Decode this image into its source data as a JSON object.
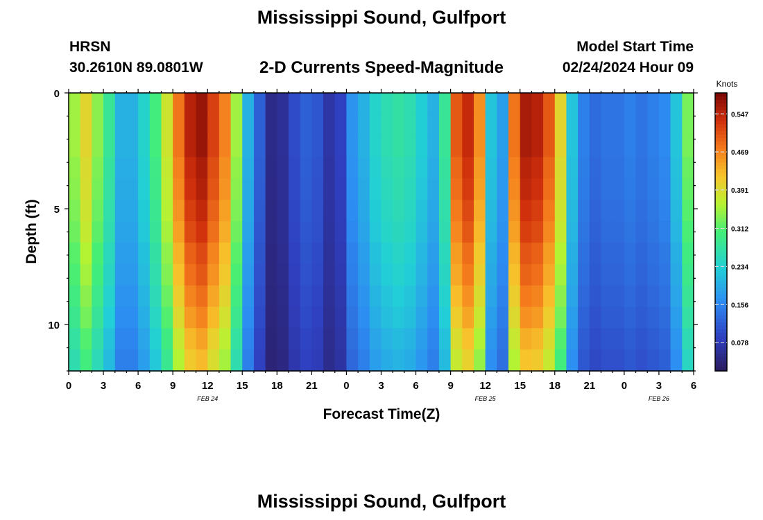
{
  "header": {
    "title": "Mississippi Sound, Gulfport",
    "station_id": "HRSN",
    "coordinates": "30.2610N  89.0801W",
    "subtitle": "2-D Currents Speed-Magnitude",
    "model_start_label": "Model Start Time",
    "model_start_value": "02/24/2024 Hour 09"
  },
  "footer": {
    "title": "Mississippi Sound, Gulfport"
  },
  "chart_data": {
    "type": "heatmap",
    "title": "2-D Currents Speed-Magnitude",
    "xlabel": "Forecast Time(Z)",
    "ylabel": "Depth (ft)",
    "x_tick_labels": [
      "0",
      "3",
      "6",
      "9",
      "12",
      "15",
      "18",
      "21",
      "0",
      "3",
      "6",
      "9",
      "12",
      "15",
      "18",
      "21",
      "0",
      "3",
      "6"
    ],
    "date_labels": [
      {
        "label": "FEB 24",
        "at_hour": 12
      },
      {
        "label": "FEB 25",
        "at_hour": 36
      },
      {
        "label": "FEB 26",
        "at_hour": 51
      }
    ],
    "x_range_hours": [
      0,
      54
    ],
    "y_tick_labels": [
      "0",
      "5",
      "10"
    ],
    "y_ticks": [
      0,
      5,
      10
    ],
    "ylim": [
      0,
      12
    ],
    "colorbar": {
      "label": "Knots",
      "ticks": [
        "0.547",
        "0.469",
        "0.391",
        "0.312",
        "0.234",
        "0.156",
        "0.078"
      ],
      "tick_values": [
        0.547,
        0.469,
        0.391,
        0.312,
        0.234,
        0.156,
        0.078
      ],
      "range": [
        0.02,
        0.59
      ]
    },
    "speed_profile_surface": [
      0.35,
      0.4,
      0.34,
      0.28,
      0.2,
      0.2,
      0.24,
      0.3,
      0.38,
      0.48,
      0.55,
      0.57,
      0.52,
      0.47,
      0.35,
      0.2,
      0.12,
      0.05,
      0.06,
      0.1,
      0.12,
      0.11,
      0.07,
      0.09,
      0.17,
      0.2,
      0.24,
      0.26,
      0.27,
      0.26,
      0.23,
      0.2,
      0.28,
      0.5,
      0.54,
      0.46,
      0.22,
      0.18,
      0.48,
      0.56,
      0.55,
      0.5,
      0.4,
      0.22,
      0.15,
      0.13,
      0.14,
      0.14,
      0.15,
      0.14,
      0.15,
      0.16,
      0.22,
      0.33
    ],
    "depth_profile_factor": [
      1.0,
      1.0,
      1.0,
      0.98,
      0.97,
      0.95,
      0.93,
      0.9,
      0.88,
      0.85,
      0.82,
      0.78,
      0.75
    ]
  }
}
